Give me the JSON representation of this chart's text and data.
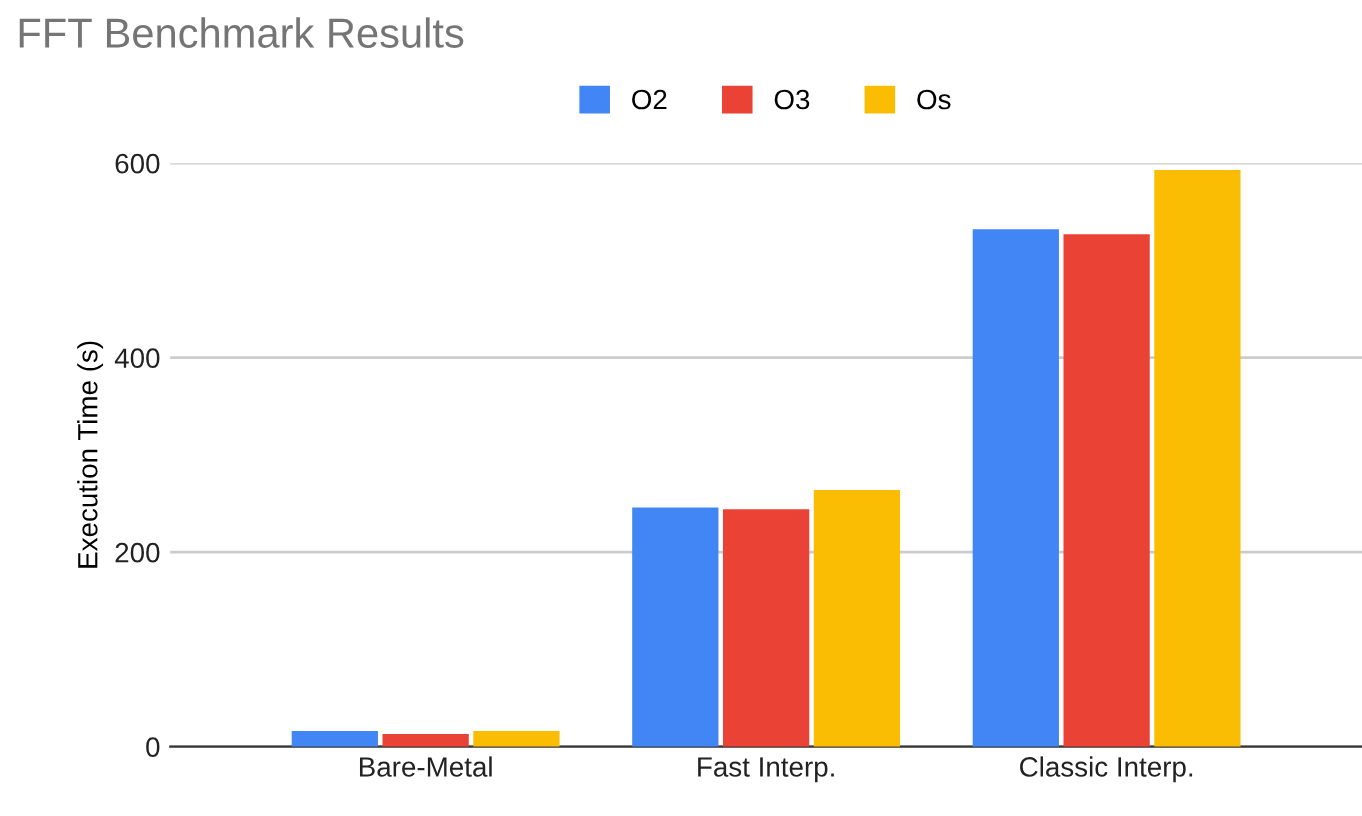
{
  "chart_data": {
    "type": "bar",
    "title": "FFT Benchmark Results",
    "ylabel": "Execution Time (s)",
    "categories": [
      "Bare-Metal",
      "Fast Interp.",
      "Classic Interp."
    ],
    "series": [
      {
        "name": "O2",
        "color": "#4285f4",
        "values": [
          16,
          246,
          532
        ]
      },
      {
        "name": "O3",
        "color": "#ea4335",
        "values": [
          13,
          244,
          527
        ]
      },
      {
        "name": "Os",
        "color": "#fbbc04",
        "values": [
          16,
          264,
          593
        ]
      }
    ],
    "ylim": [
      0,
      600
    ],
    "yticks": [
      0,
      200,
      400,
      600
    ],
    "grid": "y",
    "legend": "top"
  }
}
